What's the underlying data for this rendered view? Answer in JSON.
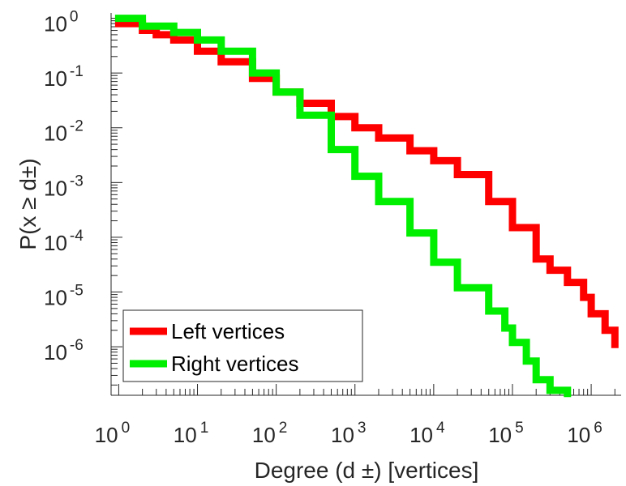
{
  "chart_data": {
    "type": "line",
    "xscale": "log",
    "yscale": "log",
    "xlabel": "Degree (d ±) [vertices]",
    "ylabel": "P(x ≥ d±)",
    "xlim": [
      0.8,
      2400000
    ],
    "ylim": [
      1.3e-07,
      1.25
    ],
    "x_ticks": [
      {
        "base": "10",
        "exp": "0",
        "value": 1
      },
      {
        "base": "10",
        "exp": "1",
        "value": 10
      },
      {
        "base": "10",
        "exp": "2",
        "value": 100
      },
      {
        "base": "10",
        "exp": "3",
        "value": 1000
      },
      {
        "base": "10",
        "exp": "4",
        "value": 10000
      },
      {
        "base": "10",
        "exp": "5",
        "value": 100000
      },
      {
        "base": "10",
        "exp": "6",
        "value": 1000000
      }
    ],
    "y_ticks": [
      {
        "base": "10",
        "exp": "0",
        "value": 1
      },
      {
        "base": "10",
        "exp": "-1",
        "value": 0.1
      },
      {
        "base": "10",
        "exp": "-2",
        "value": 0.01
      },
      {
        "base": "10",
        "exp": "-3",
        "value": 0.001
      },
      {
        "base": "10",
        "exp": "-4",
        "value": 0.0001
      },
      {
        "base": "10",
        "exp": "-5",
        "value": 1e-05
      },
      {
        "base": "10",
        "exp": "-6",
        "value": 1e-06
      }
    ],
    "legend": {
      "position": "bottom-left"
    },
    "series": [
      {
        "name": "Left vertices",
        "color": "#ff0000",
        "points": [
          [
            1,
            0.8
          ],
          [
            2,
            0.6
          ],
          [
            3,
            0.5
          ],
          [
            5,
            0.4
          ],
          [
            10,
            0.25
          ],
          [
            20,
            0.16
          ],
          [
            50,
            0.08
          ],
          [
            100,
            0.045
          ],
          [
            200,
            0.028
          ],
          [
            500,
            0.016
          ],
          [
            1000,
            0.01
          ],
          [
            2000,
            0.0065
          ],
          [
            5000,
            0.0038
          ],
          [
            10000,
            0.0025
          ],
          [
            20000,
            0.0014
          ],
          [
            50000,
            0.00045
          ],
          [
            100000,
            0.00015
          ],
          [
            200000,
            4e-05
          ],
          [
            300000,
            2.5e-05
          ],
          [
            500000,
            1.5e-05
          ],
          [
            800000,
            8e-06
          ],
          [
            1000000,
            4e-06
          ],
          [
            1500000,
            2e-06
          ],
          [
            2000000,
            1.1e-06
          ]
        ]
      },
      {
        "name": "Right vertices",
        "color": "#00ee00",
        "points": [
          [
            1,
            1.0
          ],
          [
            2,
            0.72
          ],
          [
            5,
            0.55
          ],
          [
            10,
            0.4
          ],
          [
            20,
            0.25
          ],
          [
            50,
            0.1
          ],
          [
            100,
            0.045
          ],
          [
            200,
            0.017
          ],
          [
            500,
            0.004
          ],
          [
            1000,
            0.0013
          ],
          [
            2000,
            0.00045
          ],
          [
            5000,
            0.00012
          ],
          [
            10000,
            3.5e-05
          ],
          [
            20000,
            1.2e-05
          ],
          [
            50000,
            4.5e-06
          ],
          [
            80000,
            2.2e-06
          ],
          [
            100000,
            1.2e-06
          ],
          [
            150000,
            5.5e-07
          ],
          [
            200000,
            2.5e-07
          ],
          [
            300000,
            1.6e-07
          ],
          [
            500000,
            1.4e-07
          ]
        ]
      }
    ]
  }
}
